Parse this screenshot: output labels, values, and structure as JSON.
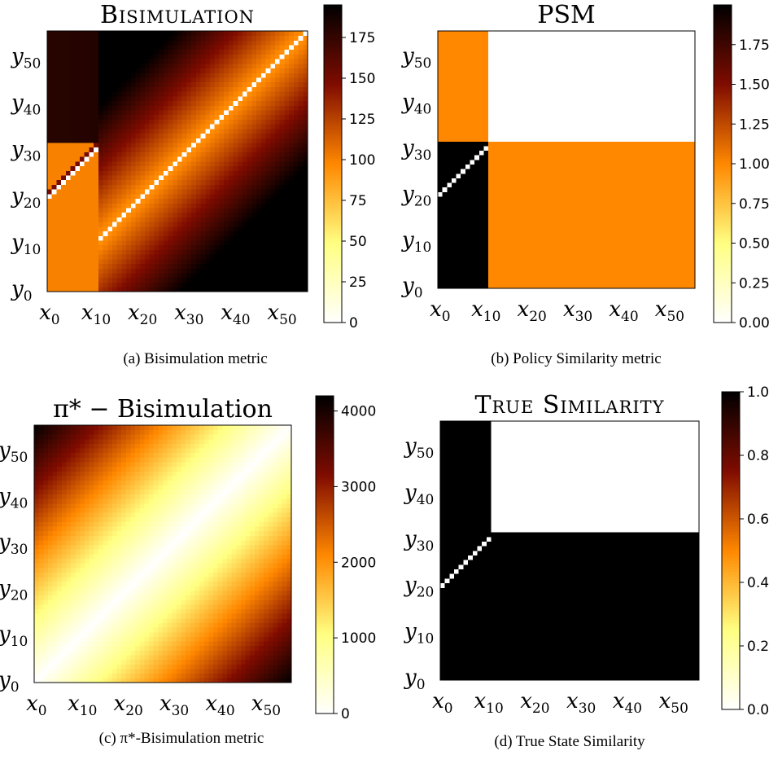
{
  "chart_data": [
    {
      "type": "heatmap",
      "title": "Bisimulation",
      "caption": "(a) Bisimulation metric",
      "grid_size": 56,
      "goal_x_index": 10,
      "goal_y_index": 31,
      "zero_diagonal": "y_j = x_(j-20) for j = 20..31; y_j = x_j for j = 32..55",
      "description_values": "upper region increases with distance from diagonal up to ~195; lower-left block ~100",
      "colorbar": {
        "min": 0,
        "max": 195,
        "ticks": [
          "0",
          "25",
          "50",
          "75",
          "100",
          "125",
          "150",
          "175"
        ],
        "tick_values": [
          0,
          25,
          50,
          75,
          100,
          125,
          150,
          175
        ],
        "colormap": "afmhot_r"
      },
      "xticks": [
        "x0",
        "x10",
        "x20",
        "x30",
        "x40",
        "x50"
      ],
      "yticks": [
        "y0",
        "y10",
        "y20",
        "y30",
        "y40",
        "y50"
      ]
    },
    {
      "type": "heatmap",
      "title": "PSM",
      "caption": "(b) Policy Similarity metric",
      "grid_size": 56,
      "goal_x_index": 11,
      "goal_y_index": 32,
      "block_values": {
        "left_lower": 2.0,
        "left_upper": 1.0,
        "right_upper": 0.0,
        "right_lower": 1.0,
        "diagonal": 0.0
      },
      "colorbar": {
        "min": 0,
        "max": 2.0,
        "ticks": [
          "0.00",
          "0.25",
          "0.50",
          "0.75",
          "1.00",
          "1.25",
          "1.50",
          "1.75"
        ],
        "tick_values": [
          0,
          0.25,
          0.5,
          0.75,
          1.0,
          1.25,
          1.5,
          1.75
        ],
        "colormap": "afmhot_r"
      },
      "xticks": [
        "x0",
        "x10",
        "x20",
        "x30",
        "x40",
        "x50"
      ],
      "yticks": [
        "y0",
        "y10",
        "y20",
        "y30",
        "y40",
        "y50"
      ]
    },
    {
      "type": "heatmap",
      "title": "π* − Bisimulation",
      "caption": "(c) π*-Bisimulation metric",
      "grid_size": 56,
      "value_rule": "≈ 75 · |i − j| (0 on the diagonal, ~4200 at opposite corners)",
      "colorbar": {
        "min": 0,
        "max": 4200,
        "ticks": [
          "0",
          "1000",
          "2000",
          "3000",
          "4000"
        ],
        "tick_values": [
          0,
          1000,
          2000,
          3000,
          4000
        ],
        "colormap": "afmhot_r"
      },
      "xticks": [
        "x0",
        "x10",
        "x20",
        "x30",
        "x40",
        "x50"
      ],
      "yticks": [
        "y0",
        "y10",
        "y20",
        "y30",
        "y40",
        "y50"
      ]
    },
    {
      "type": "heatmap",
      "title": "True Similarity",
      "caption": "(d) True State Similarity",
      "grid_size": 56,
      "goal_x_index": 11,
      "goal_y_index": 32,
      "block_values": {
        "upper_right": 0.0,
        "diagonal": 0.0,
        "elsewhere": 1.0
      },
      "colorbar": {
        "min": 0,
        "max": 1.0,
        "ticks": [
          "0.0",
          "0.2",
          "0.4",
          "0.6",
          "0.8",
          "1.0"
        ],
        "tick_values": [
          0,
          0.2,
          0.4,
          0.6,
          0.8,
          1.0
        ],
        "colormap": "afmhot_r"
      },
      "xticks": [
        "x0",
        "x10",
        "x20",
        "x30",
        "x40",
        "x50"
      ],
      "yticks": [
        "y0",
        "y10",
        "y20",
        "y30",
        "y40",
        "y50"
      ]
    }
  ]
}
